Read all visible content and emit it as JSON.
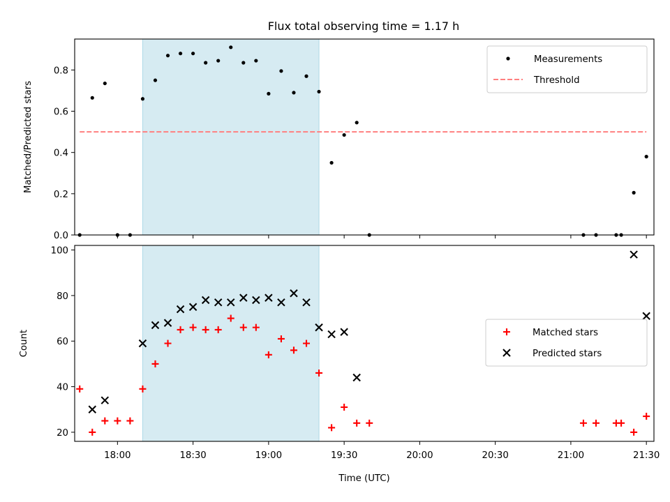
{
  "title": "Flux total observing time = 1.17 h",
  "colors": {
    "measurement": "#000000",
    "threshold": "#ff7f7f",
    "matched": "#ff0000",
    "predicted": "#000000",
    "window_fill": "#add8e6"
  },
  "chart_data": [
    {
      "type": "scatter",
      "ylabel": "Matched/Predicted stars",
      "xlabel": "",
      "ylim": [
        0,
        0.95
      ],
      "yticks": [
        "0.0",
        "0.2",
        "0.4",
        "0.6",
        "0.8"
      ],
      "xlim": [
        "17:43",
        "21:33"
      ],
      "show_xtick_labels": false,
      "legend": "top-right",
      "grid": false,
      "highlight_window": [
        "18:10",
        "19:20"
      ],
      "series": [
        {
          "name": "Measurements",
          "kind": "dot",
          "x": [
            "17:45",
            "17:50",
            "17:55",
            "18:00",
            "18:05",
            "18:10",
            "18:15",
            "18:20",
            "18:25",
            "18:30",
            "18:35",
            "18:40",
            "18:45",
            "18:50",
            "18:55",
            "19:00",
            "19:05",
            "19:10",
            "19:15",
            "19:20",
            "19:25",
            "19:30",
            "19:35",
            "19:40",
            "21:05",
            "21:10",
            "21:18",
            "21:20",
            "21:25",
            "21:30"
          ],
          "values": [
            0.0,
            0.665,
            0.735,
            0.0,
            0.0,
            0.66,
            0.75,
            0.87,
            0.88,
            0.88,
            0.835,
            0.845,
            0.91,
            0.835,
            0.845,
            0.685,
            0.795,
            0.69,
            0.77,
            0.695,
            0.35,
            0.485,
            0.545,
            0.0,
            0.0,
            0.0,
            0.0,
            0.0,
            0.205,
            0.38
          ]
        },
        {
          "name": "Threshold",
          "kind": "dashed-line",
          "x": [
            "17:45",
            "21:30"
          ],
          "values": [
            0.5,
            0.5
          ]
        }
      ]
    },
    {
      "type": "scatter",
      "ylabel": "Count",
      "xlabel": "Time (UTC)",
      "ylim": [
        16,
        102
      ],
      "yticks": [
        "20",
        "40",
        "60",
        "80",
        "100"
      ],
      "xlim": [
        "17:43",
        "21:33"
      ],
      "xticks": [
        "18:00",
        "18:30",
        "19:00",
        "19:30",
        "20:00",
        "20:30",
        "21:00",
        "21:30"
      ],
      "legend": "center-right",
      "grid": false,
      "highlight_window": [
        "18:10",
        "19:20"
      ],
      "series": [
        {
          "name": "Matched stars",
          "kind": "plus",
          "x": [
            "17:45",
            "17:50",
            "17:55",
            "18:00",
            "18:05",
            "18:10",
            "18:15",
            "18:20",
            "18:25",
            "18:30",
            "18:35",
            "18:40",
            "18:45",
            "18:50",
            "18:55",
            "19:00",
            "19:05",
            "19:10",
            "19:15",
            "19:20",
            "19:25",
            "19:30",
            "19:35",
            "19:40",
            "21:05",
            "21:10",
            "21:18",
            "21:20",
            "21:25",
            "21:30"
          ],
          "values": [
            39,
            20,
            25,
            25,
            25,
            39,
            50,
            59,
            65,
            66,
            65,
            65,
            70,
            66,
            66,
            54,
            61,
            56,
            59,
            46,
            22,
            31,
            24,
            24,
            24,
            24,
            24,
            24,
            20,
            27
          ]
        },
        {
          "name": "Predicted stars",
          "kind": "cross",
          "x": [
            "17:50",
            "17:55",
            "18:10",
            "18:15",
            "18:20",
            "18:25",
            "18:30",
            "18:35",
            "18:40",
            "18:45",
            "18:50",
            "18:55",
            "19:00",
            "19:05",
            "19:10",
            "19:15",
            "19:20",
            "19:25",
            "19:30",
            "19:35",
            "21:25",
            "21:30"
          ],
          "values": [
            30,
            34,
            59,
            67,
            68,
            74,
            75,
            78,
            77,
            77,
            79,
            78,
            79,
            77,
            81,
            77,
            66,
            63,
            64,
            44,
            98,
            71
          ]
        }
      ]
    }
  ]
}
